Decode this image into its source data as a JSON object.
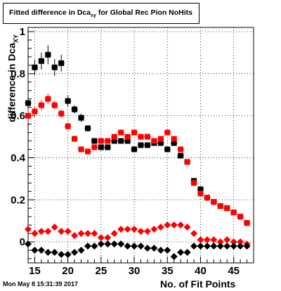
{
  "title": {
    "main": "Fitted difference in Dca",
    "sub": "xy",
    "suffix": " for Global Rec Pion NoHits"
  },
  "timestamp": "Mon May  8 15:31:39 2017",
  "chart_data": {
    "type": "scatter",
    "xlabel": "No. of Fit Points",
    "ylabel_main": "difference in Dca",
    "ylabel_sub": "XY",
    "xlim": [
      14,
      48
    ],
    "ylim": [
      -0.1,
      1.02
    ],
    "x_ticks": [
      15,
      20,
      25,
      30,
      35,
      40,
      45
    ],
    "y_ticks": [
      0,
      0.2,
      0.4,
      0.6,
      0.8,
      1
    ],
    "y_tick_labels": [
      "0",
      "0.2",
      "0.4",
      "0.6",
      "0.8",
      "1"
    ],
    "grid": true,
    "series": [
      {
        "color": "#000000",
        "marker": "square",
        "x": [
          14,
          15,
          16,
          17,
          18,
          19,
          20,
          21,
          22,
          23,
          24,
          25,
          26,
          27,
          28,
          29,
          30,
          31,
          32,
          33,
          34,
          35,
          36,
          37,
          38,
          39,
          40,
          41,
          42,
          43,
          44,
          45,
          46,
          47
        ],
        "y": [
          0.66,
          0.83,
          0.86,
          0.89,
          0.83,
          0.85,
          0.67,
          0.63,
          0.59,
          0.54,
          0.48,
          0.45,
          0.45,
          0.48,
          0.48,
          0.48,
          0.44,
          0.46,
          0.46,
          0.47,
          0.47,
          0.44,
          0.47,
          0.41,
          0.38,
          0.29,
          0.25,
          0.21,
          0.19,
          0.17,
          0.16,
          0.14,
          0.12,
          0.09
        ],
        "yerr": [
          0.06,
          0.035,
          0.04,
          0.045,
          0.04,
          0.04,
          0.025,
          0.02,
          0.02,
          0.015,
          0.012,
          0.012,
          0.012,
          0.012,
          0.012,
          0.012,
          0.012,
          0.012,
          0.012,
          0.012,
          0.012,
          0.012,
          0.012,
          0.012,
          0.012,
          0.012,
          0.012,
          0.012,
          0.012,
          0.012,
          0.012,
          0.012,
          0.012,
          0.012
        ]
      },
      {
        "color": "#ff0000",
        "marker": "square",
        "x": [
          14,
          15,
          16,
          17,
          18,
          19,
          20,
          21,
          22,
          23,
          24,
          25,
          26,
          27,
          28,
          29,
          30,
          31,
          32,
          33,
          34,
          35,
          36,
          37,
          38,
          39,
          40,
          41,
          42,
          43,
          44,
          45,
          46,
          47
        ],
        "y": [
          0.6,
          0.62,
          0.65,
          0.68,
          0.65,
          0.61,
          0.55,
          0.49,
          0.44,
          0.43,
          0.45,
          0.48,
          0.48,
          0.5,
          0.52,
          0.5,
          0.52,
          0.5,
          0.5,
          0.48,
          0.49,
          0.52,
          0.49,
          0.44,
          0.38,
          0.28,
          0.23,
          0.21,
          0.19,
          0.17,
          0.16,
          0.14,
          0.12,
          0.09
        ],
        "yerr": [
          0.03,
          0.025,
          0.025,
          0.025,
          0.02,
          0.02,
          0.018,
          0.015,
          0.012,
          0.012,
          0.012,
          0.012,
          0.012,
          0.012,
          0.012,
          0.012,
          0.012,
          0.012,
          0.012,
          0.012,
          0.012,
          0.012,
          0.012,
          0.012,
          0.012,
          0.012,
          0.012,
          0.012,
          0.012,
          0.012,
          0.012,
          0.012,
          0.012,
          0.012
        ]
      },
      {
        "color": "#ff0000",
        "marker": "diamond",
        "x": [
          14,
          15,
          16,
          17,
          18,
          19,
          20,
          21,
          22,
          23,
          24,
          25,
          26,
          27,
          28,
          29,
          30,
          31,
          32,
          33,
          34,
          35,
          36,
          37,
          38,
          39,
          40,
          41,
          42,
          43,
          44,
          45,
          46,
          47
        ],
        "y": [
          0.06,
          0.04,
          0.05,
          0.05,
          0.07,
          0.05,
          0.05,
          0.03,
          0.04,
          0.04,
          0.04,
          0.02,
          0.02,
          0.04,
          0.06,
          0.06,
          0.06,
          0.05,
          0.05,
          0.06,
          0.07,
          0.08,
          0.08,
          0.08,
          0.07,
          0.04,
          0.01,
          0.01,
          0.01,
          0.0,
          0.01,
          0.0,
          0.0,
          -0.01
        ],
        "yerr": []
      },
      {
        "color": "#000000",
        "marker": "diamond",
        "x": [
          14,
          15,
          16,
          17,
          18,
          19,
          20,
          21,
          22,
          23,
          24,
          25,
          26,
          27,
          28,
          29,
          30,
          31,
          32,
          33,
          34,
          35,
          36,
          37,
          38,
          39,
          40,
          41,
          42,
          43,
          44,
          45,
          46,
          47
        ],
        "y": [
          -0.01,
          -0.04,
          -0.04,
          -0.05,
          -0.05,
          -0.06,
          -0.06,
          -0.05,
          -0.04,
          -0.02,
          -0.02,
          -0.01,
          -0.01,
          -0.01,
          -0.01,
          -0.02,
          -0.02,
          -0.02,
          -0.03,
          -0.03,
          -0.04,
          -0.04,
          -0.07,
          -0.05,
          -0.05,
          -0.02,
          -0.02,
          -0.02,
          -0.02,
          -0.02,
          -0.02,
          -0.02,
          -0.02,
          -0.02
        ],
        "yerr": []
      }
    ]
  }
}
